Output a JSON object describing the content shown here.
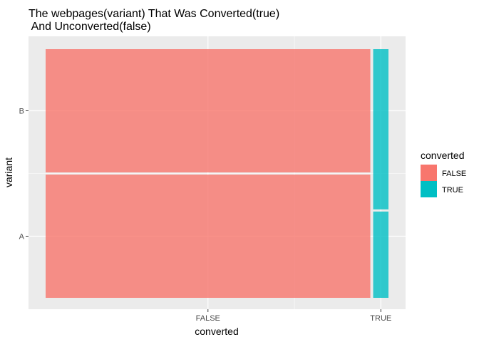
{
  "chart_data": {
    "type": "mosaic",
    "title_line1": "The webpages(variant) That Was Converted(true)",
    "title_line2": " And Unconverted(false)",
    "xlabel": "converted",
    "ylabel": "variant",
    "x_categories": [
      "FALSE",
      "TRUE"
    ],
    "y_categories": [
      "A",
      "B"
    ],
    "x_proportions": {
      "FALSE": 0.955,
      "TRUE": 0.045
    },
    "y_proportions": {
      "FALSE": {
        "A": 0.5,
        "B": 0.5
      },
      "TRUE": {
        "A": 0.35,
        "B": 0.65
      }
    },
    "legend": {
      "title": "converted",
      "entries": [
        {
          "label": "FALSE",
          "color": "#F8766D"
        },
        {
          "label": "TRUE",
          "color": "#00BFC4"
        }
      ],
      "position": "right"
    },
    "colors": {
      "FALSE": "#F8766D",
      "TRUE": "#00BFC4",
      "panel_background": "#EBEBEB",
      "grid": "#FFFFFF"
    },
    "grid": true
  }
}
